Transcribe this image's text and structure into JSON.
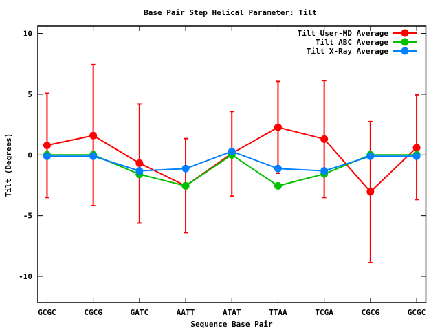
{
  "chart_data": {
    "type": "line",
    "title": "Base Pair Step Helical Parameter: Tilt",
    "xlabel": "Sequence Base Pair",
    "ylabel": "Tilt (Degrees)",
    "categories": [
      "GCGC",
      "CGCG",
      "GATC",
      "AATT",
      "ATAT",
      "TTAA",
      "TCGA",
      "CGCG",
      "GCGC"
    ],
    "xlim": [
      -0.2,
      8.2
    ],
    "ylim": [
      -12.15,
      10.6
    ],
    "yticks": [
      10,
      5,
      0,
      -5,
      -10
    ],
    "ytick_labels": [
      "10",
      "5",
      "0",
      "-5",
      "-10"
    ],
    "grid": false,
    "legend_position": "top-right",
    "series": [
      {
        "name": "Tilt User-MD Average",
        "color": "#ff0000",
        "values": [
          0.79,
          1.59,
          -0.68,
          -2.55,
          0.12,
          2.27,
          1.3,
          -3.04,
          0.6
        ],
        "error_low": [
          -3.51,
          -4.17,
          -5.61,
          -6.4,
          -3.4,
          -1.51,
          -3.51,
          -8.87,
          -3.68
        ],
        "error_high": [
          5.08,
          7.44,
          4.18,
          1.34,
          3.57,
          6.05,
          6.12,
          2.74,
          4.95
        ]
      },
      {
        "name": "Tilt ABC Average",
        "color": "#00c000",
        "values": [
          0,
          0,
          -1.6,
          -2.55,
          0,
          -2.55,
          -1.57,
          0,
          0
        ]
      },
      {
        "name": "Tilt X-Ray Average",
        "color": "#0080ff",
        "values": [
          -0.11,
          -0.11,
          -1.32,
          -1.13,
          0.28,
          -1.13,
          -1.32,
          -0.11,
          -0.11
        ]
      }
    ]
  }
}
